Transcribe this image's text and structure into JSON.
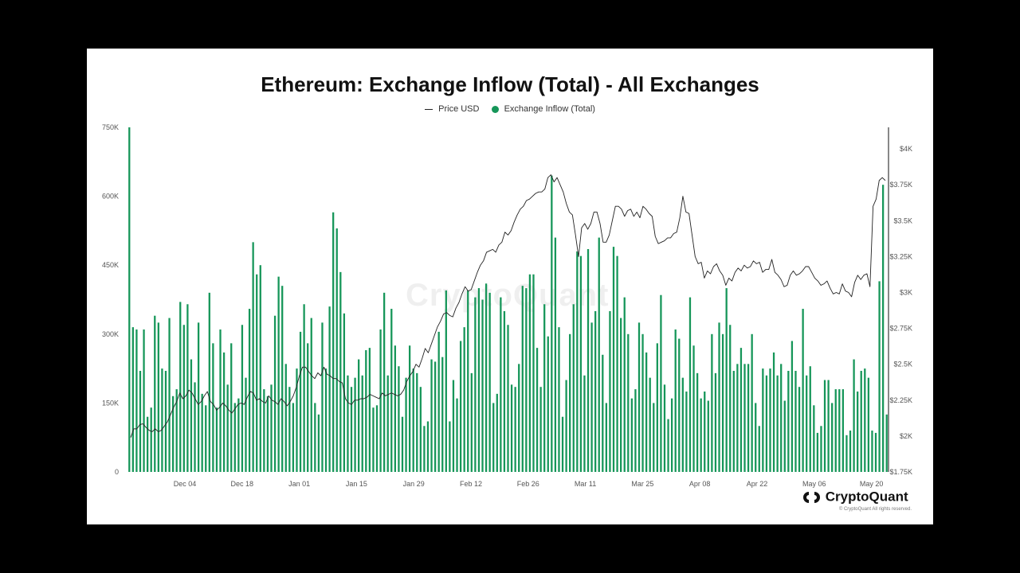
{
  "chart_data": {
    "type": "bar",
    "title": "Ethereum: Exchange Inflow (Total) - All Exchanges",
    "legend": [
      {
        "name": "Price USD",
        "kind": "line",
        "color": "#222222"
      },
      {
        "name": "Exchange Inflow (Total)",
        "kind": "dot",
        "color": "#169659"
      }
    ],
    "legend_placement": "top-center",
    "x_ticks": [
      "Dec 04",
      "Dec 18",
      "Jan 01",
      "Jan 15",
      "Jan 29",
      "Feb 12",
      "Feb 26",
      "Mar 11",
      "Mar 25",
      "Apr 08",
      "Apr 22",
      "May 06",
      "May 20"
    ],
    "y_left": {
      "ticks": [
        "0",
        "150K",
        "300K",
        "450K",
        "600K",
        "750K"
      ],
      "ylim": [
        0,
        750000
      ]
    },
    "y_right": {
      "ticks": [
        "$1.75K",
        "$2K",
        "$2.25K",
        "$2.5K",
        "$2.75K",
        "$3K",
        "$3.25K",
        "$3.5K",
        "$3.75K",
        "$4K"
      ],
      "ylim": [
        1750,
        4150
      ]
    },
    "grid": false,
    "series": [
      {
        "name": "Exchange Inflow (Total)",
        "type": "bar",
        "axis": "left",
        "color": "#169659",
        "values": [
          750000,
          315000,
          310000,
          220000,
          310000,
          120000,
          140000,
          340000,
          325000,
          225000,
          220000,
          335000,
          165000,
          180000,
          370000,
          320000,
          365000,
          245000,
          195000,
          325000,
          170000,
          145000,
          390000,
          280000,
          140000,
          310000,
          260000,
          190000,
          280000,
          150000,
          160000,
          320000,
          205000,
          355000,
          500000,
          430000,
          450000,
          180000,
          165000,
          190000,
          340000,
          425000,
          405000,
          235000,
          185000,
          150000,
          225000,
          305000,
          365000,
          280000,
          335000,
          150000,
          125000,
          325000,
          225000,
          360000,
          565000,
          530000,
          435000,
          345000,
          210000,
          185000,
          205000,
          245000,
          210000,
          265000,
          270000,
          140000,
          145000,
          310000,
          390000,
          210000,
          355000,
          275000,
          230000,
          120000,
          205000,
          275000,
          225000,
          215000,
          185000,
          100000,
          110000,
          245000,
          240000,
          305000,
          250000,
          395000,
          110000,
          200000,
          160000,
          285000,
          315000,
          395000,
          215000,
          380000,
          400000,
          375000,
          410000,
          390000,
          150000,
          170000,
          380000,
          350000,
          320000,
          190000,
          185000,
          235000,
          405000,
          400000,
          430000,
          430000,
          270000,
          185000,
          365000,
          295000,
          645000,
          510000,
          315000,
          120000,
          200000,
          300000,
          365000,
          480000,
          470000,
          210000,
          485000,
          325000,
          350000,
          510000,
          255000,
          150000,
          350000,
          490000,
          470000,
          335000,
          380000,
          300000,
          160000,
          180000,
          325000,
          300000,
          260000,
          205000,
          150000,
          280000,
          385000,
          190000,
          115000,
          160000,
          310000,
          290000,
          205000,
          175000,
          380000,
          275000,
          215000,
          160000,
          175000,
          155000,
          300000,
          215000,
          325000,
          300000,
          400000,
          320000,
          220000,
          235000,
          270000,
          235000,
          235000,
          300000,
          150000,
          100000,
          225000,
          210000,
          225000,
          260000,
          210000,
          235000,
          155000,
          220000,
          285000,
          220000,
          185000,
          355000,
          210000,
          230000,
          145000,
          85000,
          100000,
          200000,
          200000,
          150000,
          180000,
          180000,
          180000,
          80000,
          90000,
          245000,
          175000,
          220000,
          225000,
          205000,
          90000,
          85000,
          415000,
          625000,
          125000
        ]
      },
      {
        "name": "Price USD",
        "type": "line",
        "axis": "right",
        "color": "#222222",
        "values": [
          1990,
          2050,
          2050,
          2080,
          2085,
          2060,
          2040,
          2030,
          2050,
          2030,
          2040,
          2070,
          2100,
          2150,
          2200,
          2240,
          2300,
          2260,
          2280,
          2320,
          2300,
          2260,
          2220,
          2240,
          2280,
          2310,
          2240,
          2220,
          2180,
          2200,
          2230,
          2210,
          2180,
          2160,
          2190,
          2220,
          2230,
          2220,
          2270,
          2310,
          2300,
          2250,
          2260,
          2240,
          2230,
          2280,
          2250,
          2240,
          2220,
          2260,
          2240,
          2210,
          2240,
          2280,
          2340,
          2420,
          2480,
          2480,
          2450,
          2420,
          2400,
          2440,
          2420,
          2480,
          2430,
          2420,
          2400,
          2400,
          2380,
          2370,
          2260,
          2230,
          2220,
          2250,
          2250,
          2260,
          2260,
          2270,
          2290,
          2280,
          2270,
          2260,
          2300,
          2280,
          2290,
          2300,
          2290,
          2280,
          2290,
          2320,
          2380,
          2420,
          2450,
          2500,
          2480,
          2540,
          2610,
          2580,
          2640,
          2700,
          2760,
          2800,
          2850,
          2860,
          2840,
          2830,
          2890,
          2930,
          2990,
          3040,
          3010,
          3020,
          3080,
          3140,
          3190,
          3220,
          3280,
          3290,
          3300,
          3280,
          3330,
          3350,
          3420,
          3400,
          3430,
          3490,
          3540,
          3580,
          3600,
          3640,
          3650,
          3670,
          3690,
          3700,
          3700,
          3720,
          3800,
          3820,
          3770,
          3800,
          3750,
          3700,
          3620,
          3560,
          3540,
          3400,
          3250,
          3450,
          3480,
          3440,
          3480,
          3560,
          3560,
          3480,
          3350,
          3350,
          3400,
          3500,
          3600,
          3600,
          3580,
          3530,
          3570,
          3580,
          3530,
          3560,
          3520,
          3600,
          3580,
          3550,
          3530,
          3390,
          3340,
          3350,
          3360,
          3380,
          3380,
          3410,
          3420,
          3520,
          3670,
          3560,
          3550,
          3400,
          3250,
          3200,
          3210,
          3100,
          3150,
          3130,
          3180,
          3200,
          3150,
          3120,
          3050,
          3100,
          3080,
          3140,
          3170,
          3150,
          3190,
          3170,
          3180,
          3220,
          3200,
          3210,
          3140,
          3160,
          3160,
          3230,
          3140,
          3120,
          3090,
          3040,
          3050,
          3120,
          3150,
          3120,
          3130,
          3150,
          3180,
          3180,
          3140,
          3100,
          3080,
          3050,
          3060,
          3080,
          3030,
          2990,
          3000,
          2990,
          3060,
          3010,
          3000,
          2970,
          3070,
          3120,
          3090,
          3120,
          3130,
          3040,
          3600,
          3650,
          3780,
          3800,
          3780
        ]
      }
    ]
  },
  "watermark": "CryptoQuant",
  "brand": {
    "name": "CryptoQuant",
    "copyright": "© CryptoQuant All rights reserved."
  }
}
